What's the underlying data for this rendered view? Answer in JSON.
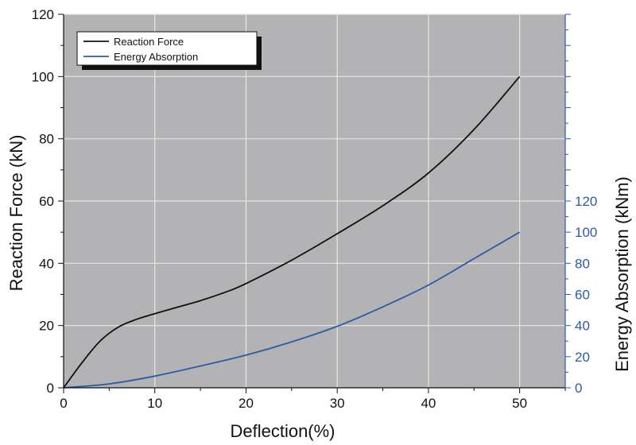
{
  "chart_data": {
    "type": "line",
    "title": "",
    "xlabel": "Deflection(%)",
    "ylabel": "Reaction Force (kN)",
    "y2label": "Energy Absorption (kNm)",
    "xlim": [
      0,
      55
    ],
    "ylim": [
      0,
      120
    ],
    "y2lim": [
      0,
      120
    ],
    "x_ticks": [
      0,
      10,
      20,
      30,
      40,
      50
    ],
    "y_ticks": [
      0,
      20,
      40,
      60,
      80,
      100,
      120
    ],
    "y2_ticks": [
      0,
      20,
      40,
      60,
      80,
      100,
      120
    ],
    "grid": true,
    "legend_position": "top-left",
    "colors": {
      "plot_background": "#b3b3b6",
      "grid": "#e6e6e6",
      "left_axis": "#111111",
      "right_axis": "#2c5aa8"
    },
    "series": [
      {
        "name": "Reaction Force",
        "axis": "left",
        "color": "#111111",
        "x": [
          0,
          2,
          4,
          6,
          8,
          10,
          12,
          15,
          18,
          20,
          25,
          30,
          35,
          40,
          45,
          50
        ],
        "y": [
          0,
          8,
          15,
          19.5,
          22,
          23.8,
          25.5,
          28,
          31,
          33.5,
          41,
          49.5,
          58.5,
          69,
          83,
          100
        ]
      },
      {
        "name": "Energy Absorption",
        "axis": "right",
        "color": "#2c5aa8",
        "x": [
          0,
          5,
          10,
          15,
          20,
          25,
          30,
          35,
          40,
          45,
          50
        ],
        "y": [
          0,
          2.5,
          7.5,
          14,
          21,
          29.5,
          39.5,
          52,
          66,
          83,
          100
        ]
      }
    ]
  }
}
